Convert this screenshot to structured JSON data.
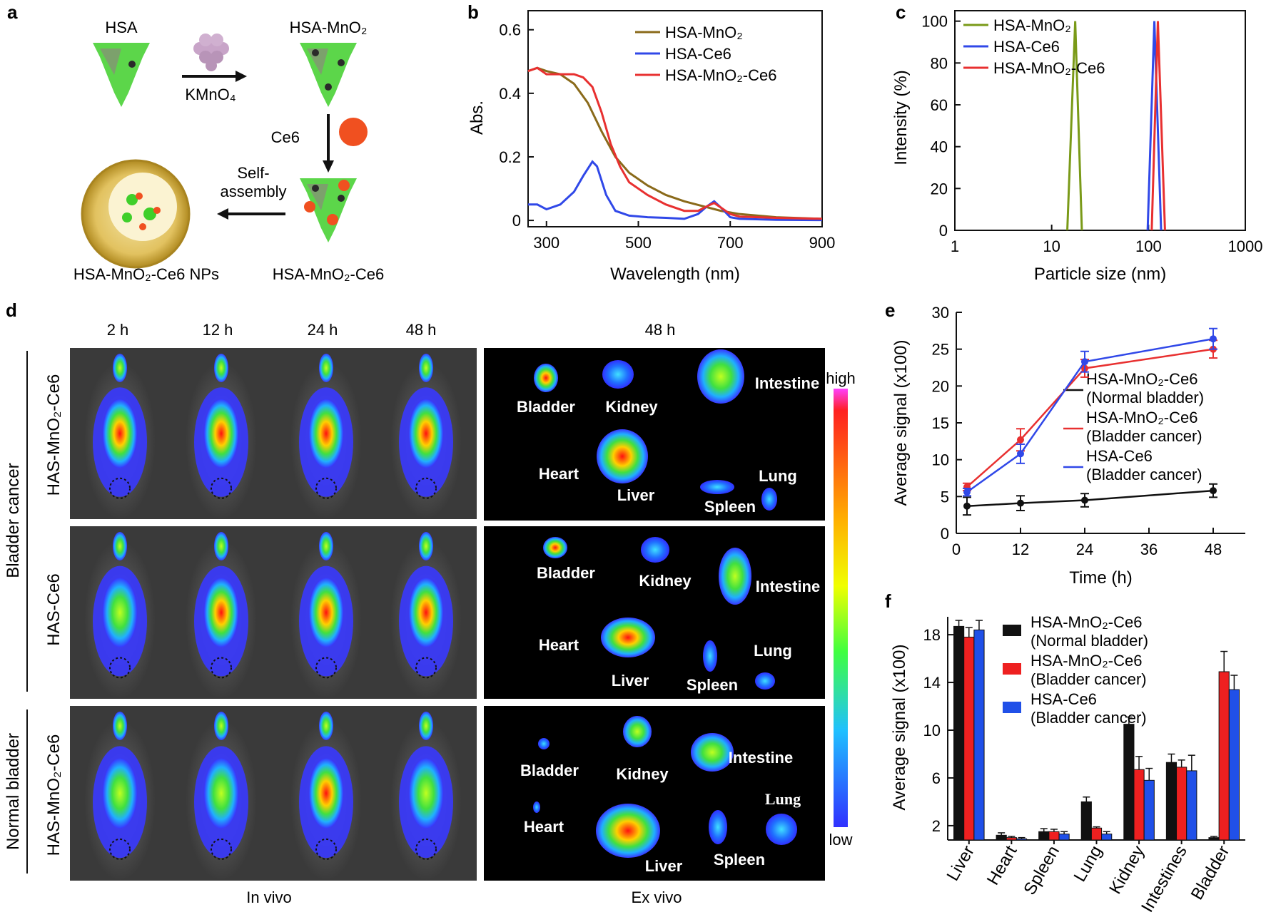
{
  "panels": {
    "a": {
      "letter": "a",
      "hsa": "HSA",
      "hsa_mno2": "HSA-MnO₂",
      "kmno4": "KMnO₄",
      "ce6": "Ce6",
      "self": "Self-",
      "assembly": "assembly",
      "hsa_mno2_ce6": "HSA-MnO₂-Ce6",
      "nps": "HSA-MnO₂-Ce6  NPs",
      "colors": {
        "protein": "#3fcf2a",
        "mn": "#c8a4c8",
        "ce6": "#f05020",
        "np": "#c8a030"
      }
    },
    "b": {
      "letter": "b"
    },
    "c": {
      "letter": "c"
    },
    "d": {
      "letter": "d",
      "time_labels": [
        "2 h",
        "12 h",
        "24 h",
        "48 h"
      ],
      "exvivo_time": "48 h",
      "group_bladder_cancer": "Bladder cancer",
      "group_normal": "Normal bladder",
      "row_labels": [
        "HAS-MnO₂-Ce6",
        "HAS-Ce6",
        "HAS-MnO₂-Ce6"
      ],
      "in_vivo": "In vivo",
      "ex_vivo": "Ex vivo",
      "scale_high": "high",
      "scale_low": "low",
      "organs": {
        "bladder": "Bladder",
        "kidney": "Kidney",
        "intestine": "Intestine",
        "heart": "Heart",
        "liver": "Liver",
        "spleen": "Spleen",
        "lung": "Lung"
      }
    },
    "e": {
      "letter": "e"
    },
    "f": {
      "letter": "f"
    }
  },
  "chart_data": [
    {
      "id": "b",
      "type": "line",
      "xlabel": "Wavelength (nm)",
      "ylabel": "Abs.",
      "xlim": [
        260,
        900
      ],
      "ylim": [
        -0.02,
        0.66
      ],
      "xticks": [
        300,
        500,
        700,
        900
      ],
      "yticks": [
        0,
        0.2,
        0.4,
        0.6
      ],
      "legend": "top-right",
      "series": [
        {
          "name": "HSA-MnO₂",
          "color": "#8a6a1a",
          "x": [
            260,
            280,
            300,
            330,
            360,
            390,
            420,
            450,
            480,
            520,
            560,
            600,
            640,
            680,
            720,
            800,
            900
          ],
          "y": [
            0.47,
            0.48,
            0.47,
            0.46,
            0.43,
            0.37,
            0.28,
            0.2,
            0.15,
            0.11,
            0.08,
            0.06,
            0.045,
            0.03,
            0.02,
            0.01,
            0.005
          ]
        },
        {
          "name": "HSA-Ce6",
          "color": "#3048e8",
          "x": [
            260,
            280,
            300,
            330,
            360,
            380,
            400,
            410,
            430,
            450,
            480,
            520,
            560,
            600,
            630,
            650,
            665,
            680,
            700,
            720,
            800,
            900
          ],
          "y": [
            0.05,
            0.05,
            0.035,
            0.05,
            0.09,
            0.14,
            0.185,
            0.17,
            0.08,
            0.03,
            0.015,
            0.01,
            0.008,
            0.005,
            0.02,
            0.045,
            0.06,
            0.04,
            0.01,
            0.005,
            0.002,
            0.001
          ]
        },
        {
          "name": "HSA-MnO₂-Ce6",
          "color": "#e83030",
          "x": [
            260,
            280,
            300,
            330,
            360,
            380,
            400,
            420,
            440,
            460,
            480,
            520,
            560,
            600,
            630,
            650,
            665,
            680,
            700,
            720,
            800,
            900
          ],
          "y": [
            0.47,
            0.48,
            0.46,
            0.46,
            0.46,
            0.45,
            0.42,
            0.34,
            0.24,
            0.17,
            0.12,
            0.08,
            0.05,
            0.03,
            0.03,
            0.045,
            0.055,
            0.04,
            0.02,
            0.012,
            0.008,
            0.005
          ]
        }
      ]
    },
    {
      "id": "c",
      "type": "line",
      "xlabel": "Particle size (nm)",
      "ylabel": "Intensity (%)",
      "xscale": "log",
      "xlim": [
        1,
        1000
      ],
      "ylim": [
        0,
        105
      ],
      "xticks": [
        1,
        10,
        100,
        1000
      ],
      "yticks": [
        0,
        20,
        40,
        60,
        80,
        100
      ],
      "legend": "top-left",
      "series": [
        {
          "name": "HSA-MnO₂",
          "color": "#7a9a18",
          "x": [
            14.5,
            17.5,
            20.5
          ],
          "y": [
            0,
            100,
            0
          ]
        },
        {
          "name": "HSA-Ce6",
          "color": "#3048e8",
          "x": [
            98,
            115,
            135
          ],
          "y": [
            0,
            100,
            0
          ]
        },
        {
          "name": "HSA-MnO₂-Ce6",
          "color": "#e83030",
          "x": [
            108,
            125,
            148
          ],
          "y": [
            0,
            100,
            0
          ]
        }
      ]
    },
    {
      "id": "e",
      "type": "line",
      "xlabel": "Time (h)",
      "ylabel": "Average  signal (x100)",
      "xlim": [
        0,
        54
      ],
      "ylim": [
        0,
        30
      ],
      "xticks": [
        0,
        12,
        24,
        36,
        48
      ],
      "yticks": [
        0,
        5,
        10,
        15,
        20,
        25,
        30
      ],
      "legend": "right",
      "series": [
        {
          "name": "HSA-MnO₂-Ce6",
          "sub": "(Normal bladder)",
          "color": "#111111",
          "x": [
            2,
            12,
            24,
            48
          ],
          "y": [
            3.7,
            4.1,
            4.5,
            5.8
          ],
          "err": [
            1.2,
            1.0,
            0.9,
            0.9
          ]
        },
        {
          "name": "HSA-MnO₂-Ce6",
          "sub": "(Bladder cancer)",
          "color": "#e83030",
          "x": [
            2,
            12,
            24,
            48
          ],
          "y": [
            6.3,
            12.7,
            22.4,
            25.0
          ],
          "err": [
            0.5,
            1.5,
            1.2,
            1.2
          ]
        },
        {
          "name": "HSA-Ce6",
          "sub": "(Bladder cancer)",
          "color": "#3048e8",
          "x": [
            2,
            12,
            24,
            48
          ],
          "y": [
            5.6,
            10.8,
            23.3,
            26.4
          ],
          "err": [
            0.5,
            1.3,
            1.4,
            1.4
          ]
        }
      ]
    },
    {
      "id": "f",
      "type": "bar",
      "ylabel": "Average  signal (x100)",
      "ylim": [
        0.8,
        19.5
      ],
      "yticks": [
        2,
        6,
        10,
        14,
        18
      ],
      "categories": [
        "Liver",
        "Heart",
        "Spleen",
        "Lung",
        "Kidney",
        "Intestines",
        "Bladder"
      ],
      "legend": "top-center",
      "series": [
        {
          "name": "HSA-MnO₂-Ce6",
          "sub": "(Normal bladder)",
          "color": "#111111",
          "values": [
            18.7,
            1.2,
            1.5,
            4.0,
            10.5,
            7.3,
            1.0
          ],
          "err": [
            0.5,
            0.2,
            0.25,
            0.4,
            0.6,
            0.7,
            0.1
          ]
        },
        {
          "name": "HSA-MnO₂-Ce6",
          "sub": "(Bladder cancer)",
          "color": "#ee2020",
          "values": [
            17.8,
            1.0,
            1.5,
            1.8,
            6.7,
            6.9,
            14.9
          ],
          "err": [
            0.8,
            0.1,
            0.2,
            0.1,
            1.1,
            0.6,
            1.7
          ]
        },
        {
          "name": "HSA-Ce6",
          "sub": "(Bladder cancer)",
          "color": "#2050e8",
          "values": [
            18.4,
            0.9,
            1.3,
            1.3,
            5.8,
            6.6,
            13.4
          ],
          "err": [
            0.8,
            0.1,
            0.2,
            0.2,
            1.0,
            1.3,
            1.2
          ]
        }
      ]
    }
  ]
}
